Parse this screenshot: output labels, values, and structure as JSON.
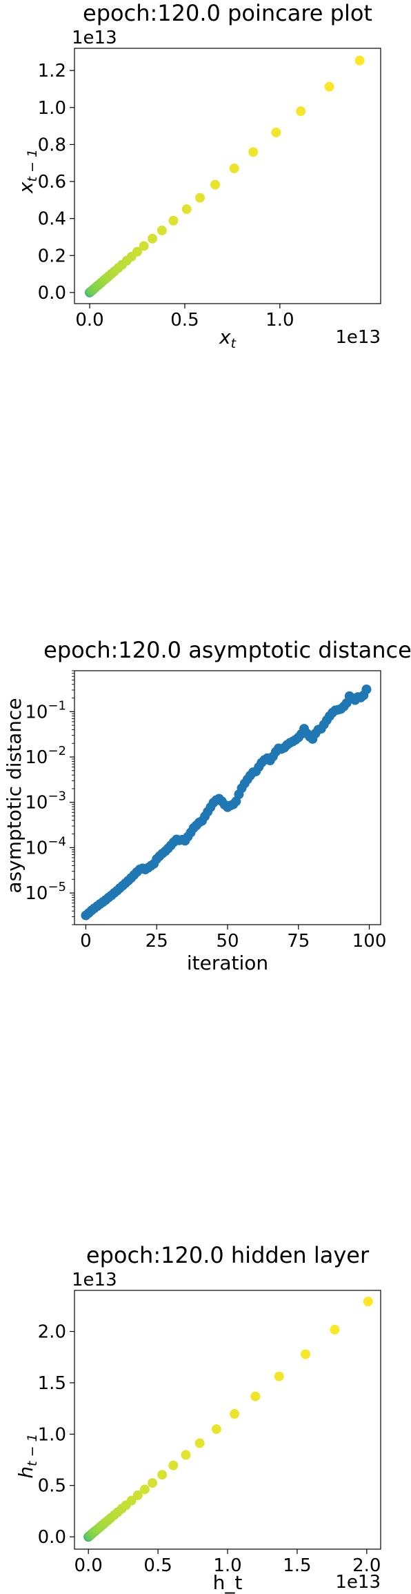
{
  "chart_data": [
    {
      "type": "scatter",
      "title": "epoch:120.0 poincare plot",
      "xlabel_base": "x",
      "xlabel_sub": "t",
      "ylabel_base": "x",
      "ylabel_sub": "t − 1",
      "x_offset_text": "1e13",
      "y_offset_text": "1e13",
      "x_scale": 10000000000000.0,
      "y_scale": 10000000000000.0,
      "xlim": [
        -0.08,
        1.53
      ],
      "ylim": [
        -0.06,
        1.32
      ],
      "yscale": "linear",
      "x_ticks": [
        {
          "v": 0.0,
          "label": "0.0"
        },
        {
          "v": 0.5,
          "label": "0.5"
        },
        {
          "v": 1.0,
          "label": "1.0"
        }
      ],
      "y_ticks": [
        {
          "v": 0.0,
          "label": "0.0"
        },
        {
          "v": 0.2,
          "label": "0.2"
        },
        {
          "v": 0.4,
          "label": "0.4"
        },
        {
          "v": 0.6,
          "label": "0.6"
        },
        {
          "v": 0.8,
          "label": "0.8"
        },
        {
          "v": 1.0,
          "label": "1.0"
        },
        {
          "v": 1.2,
          "label": "1.2"
        }
      ],
      "grid": false,
      "color_map": "viridis-upper",
      "x": [
        0.0,
        0.005,
        0.01,
        0.015,
        0.02,
        0.03,
        0.04,
        0.05,
        0.06,
        0.07,
        0.08,
        0.09,
        0.1,
        0.115,
        0.13,
        0.15,
        0.17,
        0.195,
        0.22,
        0.25,
        0.285,
        0.33,
        0.38,
        0.44,
        0.51,
        0.58,
        0.66,
        0.76,
        0.86,
        0.98,
        1.11,
        1.26,
        1.42
      ],
      "y": [
        0.0,
        0.0044,
        0.0088,
        0.0132,
        0.0176,
        0.0265,
        0.0353,
        0.0441,
        0.053,
        0.0618,
        0.0706,
        0.0795,
        0.0883,
        0.1015,
        0.1148,
        0.1324,
        0.15,
        0.1722,
        0.1942,
        0.2207,
        0.2516,
        0.2913,
        0.3355,
        0.3885,
        0.4503,
        0.512,
        0.5827,
        0.671,
        0.7592,
        0.8652,
        0.98,
        1.1124,
        1.2536
      ]
    },
    {
      "type": "scatter",
      "title": "epoch:120.0 asymptotic distance",
      "xlabel": "iteration",
      "ylabel": "asymptotic distance",
      "xlim": [
        -4,
        104
      ],
      "ylim": [
        2e-06,
        0.8
      ],
      "yscale": "log",
      "x_ticks": [
        {
          "v": 0,
          "label": "0"
        },
        {
          "v": 25,
          "label": "25"
        },
        {
          "v": 50,
          "label": "50"
        },
        {
          "v": 75,
          "label": "75"
        },
        {
          "v": 100,
          "label": "100"
        }
      ],
      "y_ticks": [
        {
          "exp": -5,
          "label": "10",
          "sup": "−5"
        },
        {
          "exp": -4,
          "label": "10",
          "sup": "−4"
        },
        {
          "exp": -3,
          "label": "10",
          "sup": "−3"
        },
        {
          "exp": -2,
          "label": "10",
          "sup": "−2"
        },
        {
          "exp": -1,
          "label": "10",
          "sup": "−1"
        }
      ],
      "grid": false,
      "color": "#1f77b4",
      "x": [
        0,
        1,
        2,
        3,
        4,
        5,
        6,
        7,
        8,
        9,
        10,
        11,
        12,
        13,
        14,
        15,
        16,
        17,
        18,
        19,
        20,
        21,
        22,
        23,
        24,
        25,
        26,
        27,
        28,
        29,
        30,
        31,
        32,
        33,
        34,
        35,
        36,
        37,
        38,
        39,
        40,
        41,
        42,
        43,
        44,
        45,
        46,
        47,
        48,
        49,
        50,
        51,
        52,
        53,
        54,
        55,
        56,
        57,
        58,
        59,
        60,
        61,
        62,
        63,
        64,
        65,
        66,
        67,
        68,
        69,
        70,
        71,
        72,
        73,
        74,
        75,
        76,
        77,
        78,
        79,
        80,
        81,
        82,
        83,
        84,
        85,
        86,
        87,
        88,
        89,
        90,
        91,
        92,
        93,
        94,
        95,
        96,
        97,
        98,
        99
      ],
      "y": [
        3.2e-06,
        3.6e-06,
        4.1e-06,
        4.6e-06,
        5.1e-06,
        5.7e-06,
        6.3e-06,
        7e-06,
        7.9e-06,
        8.8e-06,
        1e-05,
        1.12e-05,
        1.28e-05,
        1.45e-05,
        1.65e-05,
        1.88e-05,
        2.15e-05,
        2.5e-05,
        2.9e-05,
        3.3e-05,
        3.5e-05,
        3.3e-05,
        3.6e-05,
        4e-05,
        4.4e-05,
        5.6e-05,
        6.5e-05,
        7.4e-05,
        8.3e-05,
        9.6e-05,
        0.000112,
        0.000132,
        0.000152,
        0.000145,
        0.00015,
        0.000142,
        0.000175,
        0.000215,
        0.00027,
        0.00031,
        0.00036,
        0.00039,
        0.00049,
        0.00062,
        0.00078,
        0.00098,
        0.00112,
        0.0012,
        0.00105,
        0.00088,
        0.00078,
        0.00085,
        0.0009,
        0.00105,
        0.0015,
        0.00205,
        0.0026,
        0.0032,
        0.0039,
        0.0046,
        0.0048,
        0.006,
        0.0075,
        0.0086,
        0.0094,
        0.0084,
        0.0102,
        0.013,
        0.0155,
        0.015,
        0.016,
        0.0185,
        0.0205,
        0.022,
        0.024,
        0.027,
        0.032,
        0.042,
        0.033,
        0.028,
        0.025,
        0.033,
        0.04,
        0.042,
        0.052,
        0.065,
        0.08,
        0.095,
        0.107,
        0.11,
        0.115,
        0.13,
        0.155,
        0.22,
        0.2,
        0.18,
        0.21,
        0.205,
        0.23,
        0.31
      ]
    },
    {
      "type": "scatter",
      "title": "epoch:120.0 hidden layer",
      "xlabel": "h_t",
      "ylabel_base": "h",
      "ylabel_sub": "t − 1",
      "x_offset_text": "1e13",
      "y_offset_text": "1e13",
      "x_scale": 10000000000000.0,
      "y_scale": 10000000000000.0,
      "xlim": [
        -0.1,
        2.1
      ],
      "ylim": [
        -0.12,
        2.4
      ],
      "yscale": "linear",
      "x_ticks": [
        {
          "v": 0.0,
          "label": "0.0"
        },
        {
          "v": 0.5,
          "label": "0.5"
        },
        {
          "v": 1.0,
          "label": "1.0"
        },
        {
          "v": 1.5,
          "label": "1.5"
        },
        {
          "v": 2.0,
          "label": "2.0"
        }
      ],
      "y_ticks": [
        {
          "v": 0.0,
          "label": "0.0"
        },
        {
          "v": 0.5,
          "label": "0.5"
        },
        {
          "v": 1.0,
          "label": "1.0"
        },
        {
          "v": 1.5,
          "label": "1.5"
        },
        {
          "v": 2.0,
          "label": "2.0"
        }
      ],
      "grid": false,
      "color_map": "viridis-upper",
      "x": [
        0.0,
        0.006,
        0.012,
        0.02,
        0.028,
        0.036,
        0.045,
        0.055,
        0.066,
        0.078,
        0.09,
        0.105,
        0.12,
        0.14,
        0.16,
        0.185,
        0.21,
        0.24,
        0.27,
        0.31,
        0.355,
        0.405,
        0.46,
        0.53,
        0.61,
        0.7,
        0.8,
        0.92,
        1.05,
        1.2,
        1.37,
        1.56,
        1.77,
        2.01
      ],
      "y": [
        0.0,
        0.0068,
        0.0137,
        0.0228,
        0.032,
        0.041,
        0.0513,
        0.0627,
        0.0752,
        0.0889,
        0.1026,
        0.1197,
        0.1368,
        0.1596,
        0.1824,
        0.2109,
        0.2394,
        0.2736,
        0.3078,
        0.3534,
        0.4047,
        0.4617,
        0.5244,
        0.6042,
        0.6954,
        0.798,
        0.912,
        1.0488,
        1.197,
        1.368,
        1.5618,
        1.7784,
        2.0178,
        2.2914
      ]
    }
  ]
}
